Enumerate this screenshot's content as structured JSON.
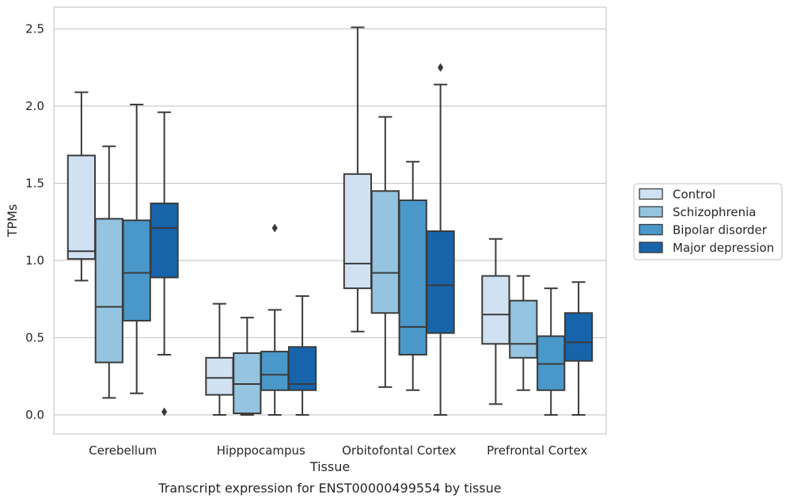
{
  "chart_data": {
    "type": "box",
    "title": "",
    "xlabel": "Tissue",
    "ylabel": "TPMs",
    "caption": "Transcript expression for ENST00000499554 by tissue",
    "ylim": [
      -0.12,
      2.64
    ],
    "yticks": [
      "0.0",
      "0.5",
      "1.0",
      "1.5",
      "2.0",
      "2.5"
    ],
    "ytick_values": [
      0,
      0.5,
      1.0,
      1.5,
      2.0,
      2.5
    ],
    "grid": true,
    "legend_position": "right",
    "categories": [
      "Cerebellum",
      "Hipppocampus",
      "Orbitofontal Cortex",
      "Prefrontal Cortex"
    ],
    "series": [
      {
        "name": "Control",
        "color": "#d0e1f2",
        "boxes": [
          {
            "whislo": 0.87,
            "q1": 1.01,
            "med": 1.06,
            "q3": 1.68,
            "whishi": 2.09,
            "fliers": []
          },
          {
            "whislo": 0.0,
            "q1": 0.13,
            "med": 0.24,
            "q3": 0.37,
            "whishi": 0.72,
            "fliers": []
          },
          {
            "whislo": 0.54,
            "q1": 0.82,
            "med": 0.98,
            "q3": 1.56,
            "whishi": 2.51,
            "fliers": []
          },
          {
            "whislo": 0.07,
            "q1": 0.46,
            "med": 0.65,
            "q3": 0.9,
            "whishi": 1.14,
            "fliers": []
          }
        ]
      },
      {
        "name": "Schizophrenia",
        "color": "#94c4df",
        "boxes": [
          {
            "whislo": 0.11,
            "q1": 0.34,
            "med": 0.7,
            "q3": 1.27,
            "whishi": 1.74,
            "fliers": []
          },
          {
            "whislo": 0.0,
            "q1": 0.01,
            "med": 0.2,
            "q3": 0.4,
            "whishi": 0.63,
            "fliers": []
          },
          {
            "whislo": 0.18,
            "q1": 0.66,
            "med": 0.92,
            "q3": 1.45,
            "whishi": 1.93,
            "fliers": []
          },
          {
            "whislo": 0.16,
            "q1": 0.37,
            "med": 0.46,
            "q3": 0.74,
            "whishi": 0.9,
            "fliers": []
          }
        ]
      },
      {
        "name": "Bipolar disorder",
        "color": "#4a98c9",
        "boxes": [
          {
            "whislo": 0.14,
            "q1": 0.61,
            "med": 0.92,
            "q3": 1.26,
            "whishi": 2.01,
            "fliers": []
          },
          {
            "whislo": 0.0,
            "q1": 0.16,
            "med": 0.26,
            "q3": 0.41,
            "whishi": 0.68,
            "fliers": [
              1.21
            ]
          },
          {
            "whislo": 0.16,
            "q1": 0.39,
            "med": 0.57,
            "q3": 1.39,
            "whishi": 1.64,
            "fliers": []
          },
          {
            "whislo": 0.0,
            "q1": 0.16,
            "med": 0.33,
            "q3": 0.51,
            "whishi": 0.82,
            "fliers": []
          }
        ]
      },
      {
        "name": "Major depression",
        "color": "#1764ab",
        "boxes": [
          {
            "whislo": 0.39,
            "q1": 0.89,
            "med": 1.21,
            "q3": 1.37,
            "whishi": 1.96,
            "fliers": [
              0.02
            ]
          },
          {
            "whislo": 0.0,
            "q1": 0.16,
            "med": 0.2,
            "q3": 0.44,
            "whishi": 0.77,
            "fliers": []
          },
          {
            "whislo": 0.0,
            "q1": 0.53,
            "med": 0.84,
            "q3": 1.19,
            "whishi": 2.14,
            "fliers": [
              2.25
            ]
          },
          {
            "whislo": 0.0,
            "q1": 0.35,
            "med": 0.47,
            "q3": 0.66,
            "whishi": 0.86,
            "fliers": []
          }
        ]
      }
    ]
  }
}
